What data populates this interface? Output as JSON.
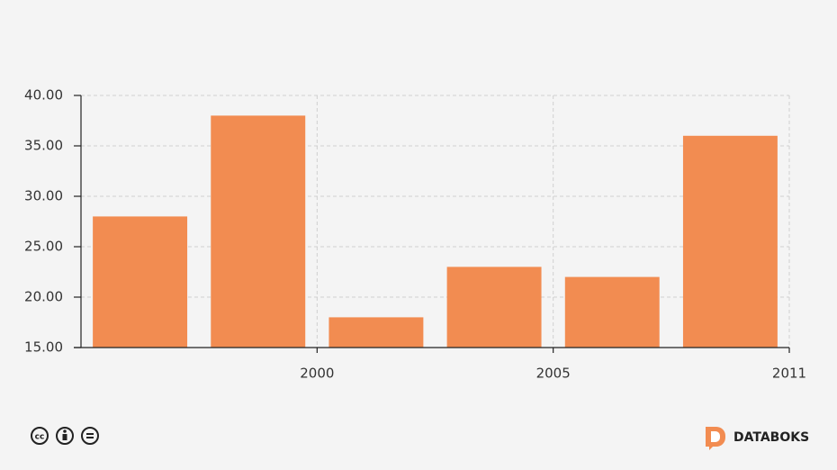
{
  "chart_data": {
    "type": "bar",
    "categories": [
      null,
      "2000",
      null,
      "2005",
      null,
      "2011"
    ],
    "values": [
      28,
      38,
      18,
      23,
      22,
      36
    ],
    "color": "#f28c51",
    "ylim": [
      15,
      40
    ],
    "yticks": [
      {
        "value": 15,
        "label": "15.00"
      },
      {
        "value": 20,
        "label": "20.00"
      },
      {
        "value": 25,
        "label": "25.00"
      },
      {
        "value": 30,
        "label": "30.00"
      },
      {
        "value": 35,
        "label": "35.00"
      },
      {
        "value": 40,
        "label": "40.00"
      }
    ],
    "grid": true
  },
  "footer": {
    "brand": "DATABOKS"
  }
}
